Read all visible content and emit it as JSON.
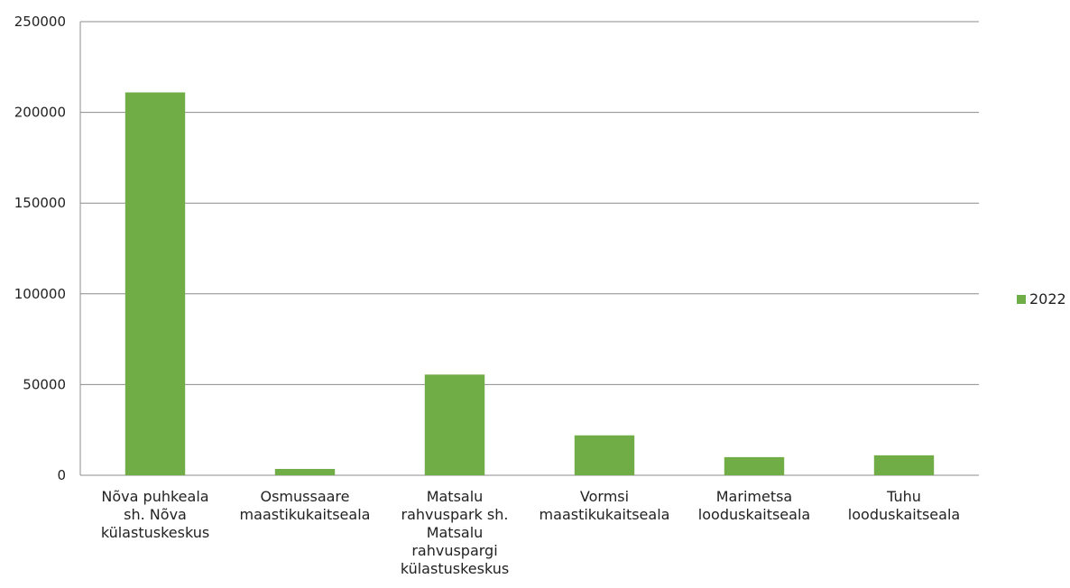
{
  "chart_data": {
    "type": "bar",
    "categories": [
      "Nõva puhkeala sh. Nõva külastuskeskus",
      "Osmussaare maastikukaitseala",
      "Matsalu rahvuspark sh. Matsalu rahvuspargi külastuskeskus",
      "Vormsi maastikukaitseala",
      "Marimetsa looduskaitseala",
      "Tuhu looduskaitseala"
    ],
    "category_lines": [
      [
        "Nõva puhkeala",
        "sh. Nõva",
        "külastuskeskus"
      ],
      [
        "Osmussaare",
        "maastikukaitseala"
      ],
      [
        "Matsalu",
        "rahvuspark sh.",
        "Matsalu",
        "rahvuspargi",
        "külastuskeskus"
      ],
      [
        "Vormsi",
        "maastikukaitseala"
      ],
      [
        "Marimetsa",
        "looduskaitseala"
      ],
      [
        "Tuhu",
        "looduskaitseala"
      ]
    ],
    "series": [
      {
        "name": "2022",
        "values": [
          211000,
          3500,
          55500,
          22000,
          10000,
          11000
        ],
        "color": "#70ad47"
      }
    ],
    "ylim": [
      0,
      250000
    ],
    "yticks": [
      0,
      50000,
      100000,
      150000,
      200000,
      250000
    ],
    "grid": true,
    "legend": "right",
    "title": "",
    "xlabel": "",
    "ylabel": ""
  }
}
